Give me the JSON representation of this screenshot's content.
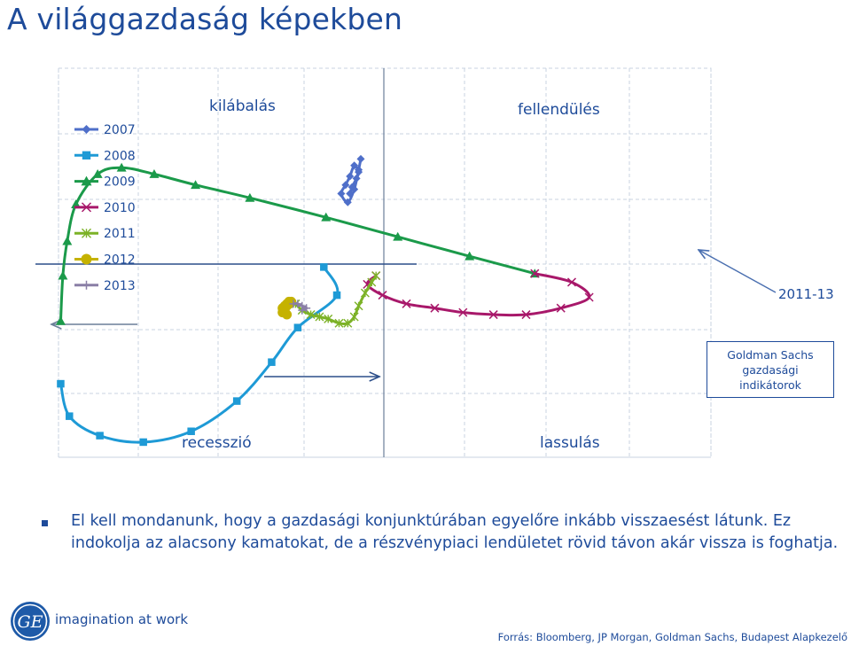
{
  "page": {
    "title": "A világgazdaság képekben",
    "bullet_text": "El kell mondanunk, hogy a gazdasági konjunktúrában egyelőre inkább visszaesést látunk. Ez indokolja az alacsony kamatokat, de a részvénypiaci lendületet rövid távon akár vissza is foghatja.",
    "tagline": "imagination at work",
    "source": "Forrás: Bloomberg, JP Morgan, Goldman Sachs, Budapest Alapkezelő",
    "callout": {
      "line1": "Goldman Sachs",
      "line2": "gazdasági",
      "line3": "indikátorok"
    },
    "year_label": "2011-13",
    "logo_icon": "ge-logo-icon"
  },
  "chart_data": {
    "type": "line",
    "quadrant_labels": {
      "top_left": "kilábalás",
      "top_right": "fellendülés",
      "bottom_left": "recesszió",
      "bottom_right": "lassulás"
    },
    "grid": true,
    "legend_position": "left",
    "series": [
      {
        "name": "2007",
        "color": "#4f6fc9",
        "marker": "diamond",
        "points": [
          [
            1.34,
            0.02
          ],
          [
            1.35,
            0.05
          ],
          [
            1.37,
            0.09
          ],
          [
            1.38,
            0.12
          ],
          [
            1.36,
            0.15
          ],
          [
            1.34,
            0.1
          ],
          [
            1.32,
            0.06
          ],
          [
            1.3,
            0.02
          ],
          [
            1.33,
            -0.02
          ],
          [
            1.36,
            0.04
          ],
          [
            1.38,
            0.13
          ],
          [
            1.39,
            0.18
          ]
        ]
      },
      {
        "name": "2008",
        "color": "#1e9ad6",
        "marker": "square",
        "points": [
          [
            1.22,
            -0.32
          ],
          [
            1.28,
            -0.45
          ],
          [
            1.1,
            -0.6
          ],
          [
            0.98,
            -0.76
          ],
          [
            0.82,
            -0.94
          ],
          [
            0.61,
            -1.08
          ],
          [
            0.39,
            -1.13
          ],
          [
            0.19,
            -1.1
          ],
          [
            0.05,
            -1.01
          ],
          [
            0.01,
            -0.86
          ]
        ]
      },
      {
        "name": "2009",
        "color": "#1b9a4a",
        "marker": "triangle",
        "points": [
          [
            0.01,
            -0.57
          ],
          [
            0.02,
            -0.36
          ],
          [
            0.04,
            -0.2
          ],
          [
            0.08,
            -0.03
          ],
          [
            0.18,
            0.11
          ],
          [
            0.29,
            0.14
          ],
          [
            0.44,
            0.11
          ],
          [
            0.63,
            0.06
          ],
          [
            0.88,
            0.0
          ],
          [
            1.23,
            -0.09
          ],
          [
            1.56,
            -0.18
          ],
          [
            1.89,
            -0.27
          ],
          [
            2.19,
            -0.35
          ]
        ]
      },
      {
        "name": "2010",
        "color": "#a8186a",
        "marker": "x",
        "points": [
          [
            2.19,
            -0.35
          ],
          [
            2.36,
            -0.39
          ],
          [
            2.44,
            -0.46
          ],
          [
            2.31,
            -0.51
          ],
          [
            2.15,
            -0.54
          ],
          [
            2.0,
            -0.54
          ],
          [
            1.86,
            -0.53
          ],
          [
            1.73,
            -0.51
          ],
          [
            1.6,
            -0.49
          ],
          [
            1.49,
            -0.45
          ],
          [
            1.42,
            -0.4
          ],
          [
            1.46,
            -0.36
          ]
        ]
      },
      {
        "name": "2011",
        "color": "#7cb227",
        "marker": "asterisk",
        "points": [
          [
            1.46,
            -0.36
          ],
          [
            1.44,
            -0.39
          ],
          [
            1.41,
            -0.44
          ],
          [
            1.38,
            -0.5
          ],
          [
            1.36,
            -0.55
          ],
          [
            1.33,
            -0.58
          ],
          [
            1.29,
            -0.58
          ],
          [
            1.24,
            -0.56
          ],
          [
            1.2,
            -0.55
          ],
          [
            1.16,
            -0.54
          ],
          [
            1.12,
            -0.52
          ],
          [
            1.09,
            -0.49
          ]
        ]
      },
      {
        "name": "2012",
        "color": "#c5b200",
        "marker": "circle",
        "points": [
          [
            1.05,
            -0.54
          ],
          [
            1.04,
            -0.53
          ],
          [
            1.04,
            -0.52
          ],
          [
            1.03,
            -0.51
          ],
          [
            1.04,
            -0.5
          ],
          [
            1.05,
            -0.49
          ],
          [
            1.06,
            -0.48
          ],
          [
            1.07,
            -0.48
          ],
          [
            1.06,
            -0.49
          ],
          [
            1.05,
            -0.5
          ],
          [
            1.04,
            -0.51
          ],
          [
            1.03,
            -0.53
          ]
        ]
      },
      {
        "name": "2013",
        "color": "#8a7fa6",
        "marker": "plus",
        "points": [
          [
            1.08,
            -0.49
          ],
          [
            1.1,
            -0.49
          ],
          [
            1.12,
            -0.5
          ],
          [
            1.14,
            -0.51
          ],
          [
            1.12,
            -0.52
          ]
        ]
      }
    ]
  }
}
